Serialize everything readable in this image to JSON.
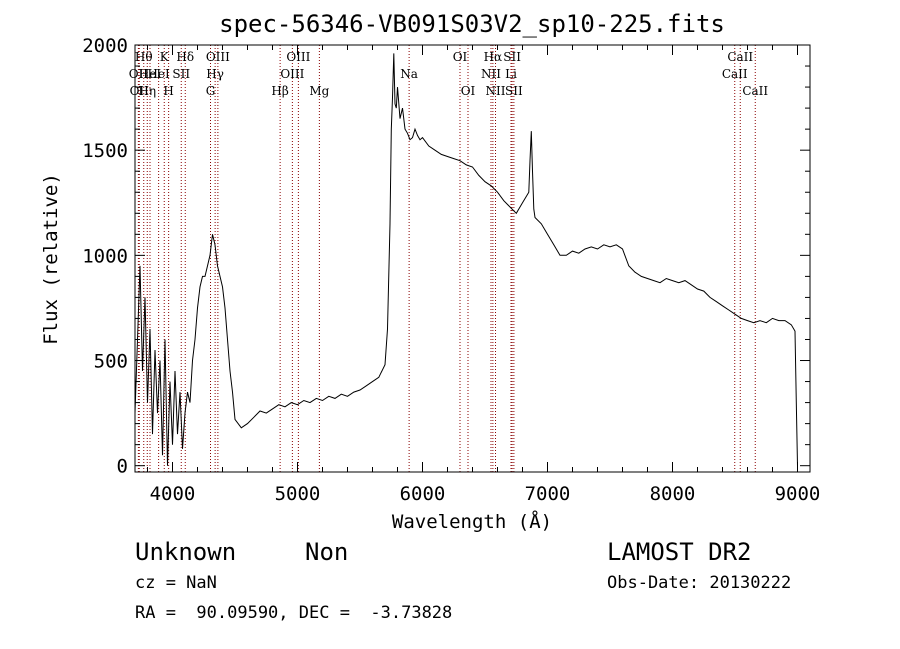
{
  "chart_data": {
    "type": "line",
    "title": "spec-56346-VB091S03V2_sp10-225.fits",
    "xlabel": "Wavelength (Å)",
    "ylabel": "Flux (relative)",
    "xlim": [
      3700,
      9100
    ],
    "ylim": [
      -30,
      2000
    ],
    "xticks": [
      4000,
      5000,
      6000,
      7000,
      8000,
      9000
    ],
    "yticks": [
      0,
      500,
      1000,
      1500,
      2000
    ],
    "grid": false,
    "series": [
      {
        "name": "",
        "x": [
          3700,
          3720,
          3740,
          3760,
          3780,
          3800,
          3820,
          3840,
          3860,
          3880,
          3900,
          3920,
          3940,
          3960,
          3980,
          4000,
          4020,
          4040,
          4060,
          4080,
          4100,
          4120,
          4140,
          4160,
          4180,
          4200,
          4220,
          4240,
          4260,
          4280,
          4300,
          4320,
          4340,
          4360,
          4380,
          4400,
          4420,
          4440,
          4460,
          4480,
          4500,
          4550,
          4600,
          4650,
          4700,
          4750,
          4800,
          4850,
          4900,
          4950,
          5000,
          5050,
          5100,
          5150,
          5200,
          5250,
          5300,
          5350,
          5400,
          5450,
          5500,
          5550,
          5600,
          5650,
          5700,
          5720,
          5740,
          5750,
          5760,
          5770,
          5780,
          5790,
          5800,
          5820,
          5840,
          5860,
          5880,
          5900,
          5920,
          5940,
          5960,
          5980,
          6000,
          6050,
          6100,
          6150,
          6200,
          6250,
          6300,
          6350,
          6400,
          6450,
          6500,
          6550,
          6600,
          6650,
          6700,
          6750,
          6800,
          6850,
          6860,
          6870,
          6880,
          6890,
          6900,
          6950,
          7000,
          7050,
          7100,
          7150,
          7200,
          7250,
          7300,
          7350,
          7400,
          7450,
          7500,
          7550,
          7600,
          7650,
          7700,
          7750,
          7800,
          7850,
          7900,
          7950,
          8000,
          8050,
          8100,
          8150,
          8200,
          8250,
          8300,
          8350,
          8400,
          8450,
          8500,
          8550,
          8600,
          8650,
          8700,
          8750,
          8800,
          8850,
          8900,
          8950,
          8980,
          8990,
          9000
        ],
        "values": [
          250,
          600,
          950,
          450,
          800,
          300,
          650,
          150,
          550,
          250,
          500,
          50,
          600,
          0,
          400,
          100,
          450,
          150,
          350,
          80,
          250,
          350,
          300,
          500,
          600,
          750,
          850,
          900,
          900,
          950,
          1000,
          1100,
          1050,
          950,
          900,
          850,
          750,
          600,
          450,
          350,
          220,
          180,
          200,
          230,
          260,
          250,
          270,
          290,
          280,
          300,
          290,
          310,
          300,
          320,
          310,
          330,
          320,
          340,
          330,
          350,
          360,
          380,
          400,
          420,
          480,
          650,
          1150,
          1600,
          1750,
          1960,
          1720,
          1700,
          1800,
          1650,
          1700,
          1600,
          1580,
          1550,
          1560,
          1600,
          1570,
          1550,
          1560,
          1520,
          1500,
          1480,
          1470,
          1460,
          1450,
          1430,
          1420,
          1380,
          1350,
          1330,
          1300,
          1260,
          1230,
          1200,
          1250,
          1300,
          1450,
          1590,
          1400,
          1220,
          1180,
          1150,
          1100,
          1050,
          1000,
          1000,
          1020,
          1010,
          1030,
          1040,
          1030,
          1050,
          1040,
          1050,
          1030,
          950,
          920,
          900,
          890,
          880,
          870,
          890,
          880,
          870,
          880,
          860,
          840,
          830,
          800,
          780,
          760,
          740,
          720,
          700,
          690,
          680,
          690,
          680,
          700,
          690,
          690,
          670,
          640,
          300,
          0
        ]
      }
    ],
    "line_markers": [
      {
        "wl": 3727,
        "label": "OII",
        "row": 2
      },
      {
        "wl": 3734,
        "label": "OII",
        "row": 3
      },
      {
        "wl": 3770,
        "label": "Hθ",
        "row": 1
      },
      {
        "wl": 3798,
        "label": "Hη",
        "row": 3
      },
      {
        "wl": 3820,
        "label": "HeI",
        "row": 2
      },
      {
        "wl": 3889,
        "label": "HeI",
        "row": 2
      },
      {
        "wl": 3934,
        "label": "K",
        "row": 1
      },
      {
        "wl": 3969,
        "label": "H",
        "row": 3
      },
      {
        "wl": 4070,
        "label": "SII",
        "row": 2
      },
      {
        "wl": 4102,
        "label": "Hδ",
        "row": 1
      },
      {
        "wl": 4304,
        "label": "G",
        "row": 3
      },
      {
        "wl": 4341,
        "label": "Hγ",
        "row": 2
      },
      {
        "wl": 4363,
        "label": "OIII",
        "row": 1
      },
      {
        "wl": 4861,
        "label": "Hβ",
        "row": 3
      },
      {
        "wl": 4959,
        "label": "OIII",
        "row": 2
      },
      {
        "wl": 5007,
        "label": "OIII",
        "row": 1
      },
      {
        "wl": 5175,
        "label": "Mg",
        "row": 3
      },
      {
        "wl": 5893,
        "label": "Na",
        "row": 2
      },
      {
        "wl": 6300,
        "label": "OI",
        "row": 1
      },
      {
        "wl": 6364,
        "label": "OI",
        "row": 3
      },
      {
        "wl": 6548,
        "label": "NII",
        "row": 2
      },
      {
        "wl": 6563,
        "label": "Hα",
        "row": 1
      },
      {
        "wl": 6584,
        "label": "NII",
        "row": 3
      },
      {
        "wl": 6708,
        "label": "Li",
        "row": 2
      },
      {
        "wl": 6717,
        "label": "SII",
        "row": 1
      },
      {
        "wl": 6731,
        "label": "SII",
        "row": 3
      },
      {
        "wl": 8498,
        "label": "CaII",
        "row": 2
      },
      {
        "wl": 8542,
        "label": "CaII",
        "row": 1
      },
      {
        "wl": 8662,
        "label": "CaII",
        "row": 3
      }
    ],
    "marker_color": "#8b0000"
  },
  "info": {
    "classification": "Unknown",
    "subclass": "Non",
    "survey": "LAMOST DR2",
    "cz": "cz = NaN",
    "obs_date": "Obs-Date: 20130222",
    "coords": "RA =  90.09590, DEC =  -3.73828"
  }
}
